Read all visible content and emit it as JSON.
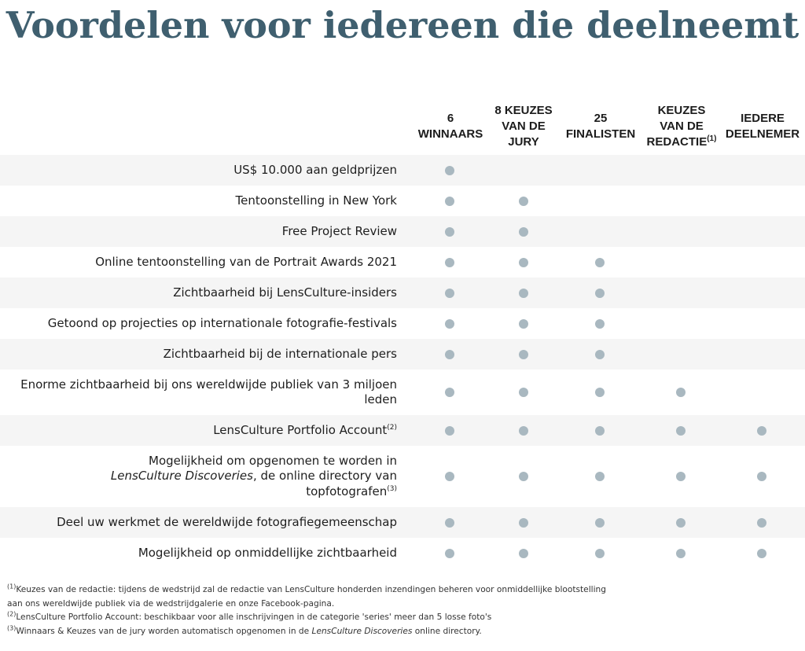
{
  "title": "Voordelen voor iedereen die deelneemt",
  "columns": [
    {
      "label": "6\nWINNAARS",
      "sup": ""
    },
    {
      "label": "8 KEUZES\nVAN DE\nJURY",
      "sup": ""
    },
    {
      "label": "25\nFINALISTEN",
      "sup": ""
    },
    {
      "label": "KEUZES\nVAN DE\nREDACTIE",
      "sup": "(1)"
    },
    {
      "label": "IEDERE\nDEELNEMER",
      "sup": ""
    }
  ],
  "rows": [
    {
      "parts": [
        "US$ 10.000 aan geldprijzen"
      ],
      "checks": [
        true,
        false,
        false,
        false,
        false
      ]
    },
    {
      "parts": [
        "Tentoonstelling in New York"
      ],
      "checks": [
        true,
        true,
        false,
        false,
        false
      ]
    },
    {
      "parts": [
        "Free Project Review"
      ],
      "checks": [
        true,
        true,
        false,
        false,
        false
      ]
    },
    {
      "parts": [
        "Online tentoonstelling van de Portrait Awards 2021"
      ],
      "checks": [
        true,
        true,
        true,
        false,
        false
      ]
    },
    {
      "parts": [
        "Zichtbaarheid bij LensCulture-insiders"
      ],
      "checks": [
        true,
        true,
        true,
        false,
        false
      ]
    },
    {
      "parts": [
        "Getoond op projecties op internationale fotografie-festivals"
      ],
      "checks": [
        true,
        true,
        true,
        false,
        false
      ]
    },
    {
      "parts": [
        "Zichtbaarheid bij de internationale pers"
      ],
      "checks": [
        true,
        true,
        true,
        false,
        false
      ]
    },
    {
      "parts": [
        "Enorme zichtbaarheid bij ons wereldwijde publiek van 3 miljoen leden"
      ],
      "checks": [
        true,
        true,
        true,
        true,
        false
      ]
    },
    {
      "parts": [
        "LensCulture Portfolio Account",
        "(2)"
      ],
      "checks": [
        true,
        true,
        true,
        true,
        true
      ]
    },
    {
      "parts": [
        "Mogelijkheid om opgenomen te worden in ",
        "LensCulture Discoveries",
        ", de online directory van topfotografen",
        "(3)"
      ],
      "checks": [
        true,
        true,
        true,
        true,
        true
      ]
    },
    {
      "parts": [
        "Deel uw werkmet de wereldwijde fotografiegemeenschap"
      ],
      "checks": [
        true,
        true,
        true,
        true,
        true
      ]
    },
    {
      "parts": [
        "Mogelijkheid op onmiddellijke zichtbaarheid"
      ],
      "checks": [
        true,
        true,
        true,
        true,
        true
      ]
    }
  ],
  "footnotes": {
    "n1_mark": "(1)",
    "n1_text": "Keuzes van de redactie: tijdens de wedstrijd zal de redactie van LensCulture honderden inzendingen beheren voor onmiddellijke blootstelling",
    "n1_text2": "aan ons wereldwijde publiek via de wedstrijdgalerie en onze Facebook-pagina.",
    "n2_mark": "(2)",
    "n2_text": "LensCulture Portfolio Account: beschikbaar voor alle inschrijvingen in de categorie 'series' meer dan 5 losse foto's",
    "n3_mark": "(3)",
    "n3_text": "Winnaars & Keuzes van de jury worden automatisch opgenomen in de ",
    "n3_em": "LensCulture Discoveries",
    "n3_text2": " online directory."
  },
  "colors": {
    "title": "#3f5f6f",
    "dot": "#a9b8c0",
    "row_shade": "#f5f5f5"
  }
}
